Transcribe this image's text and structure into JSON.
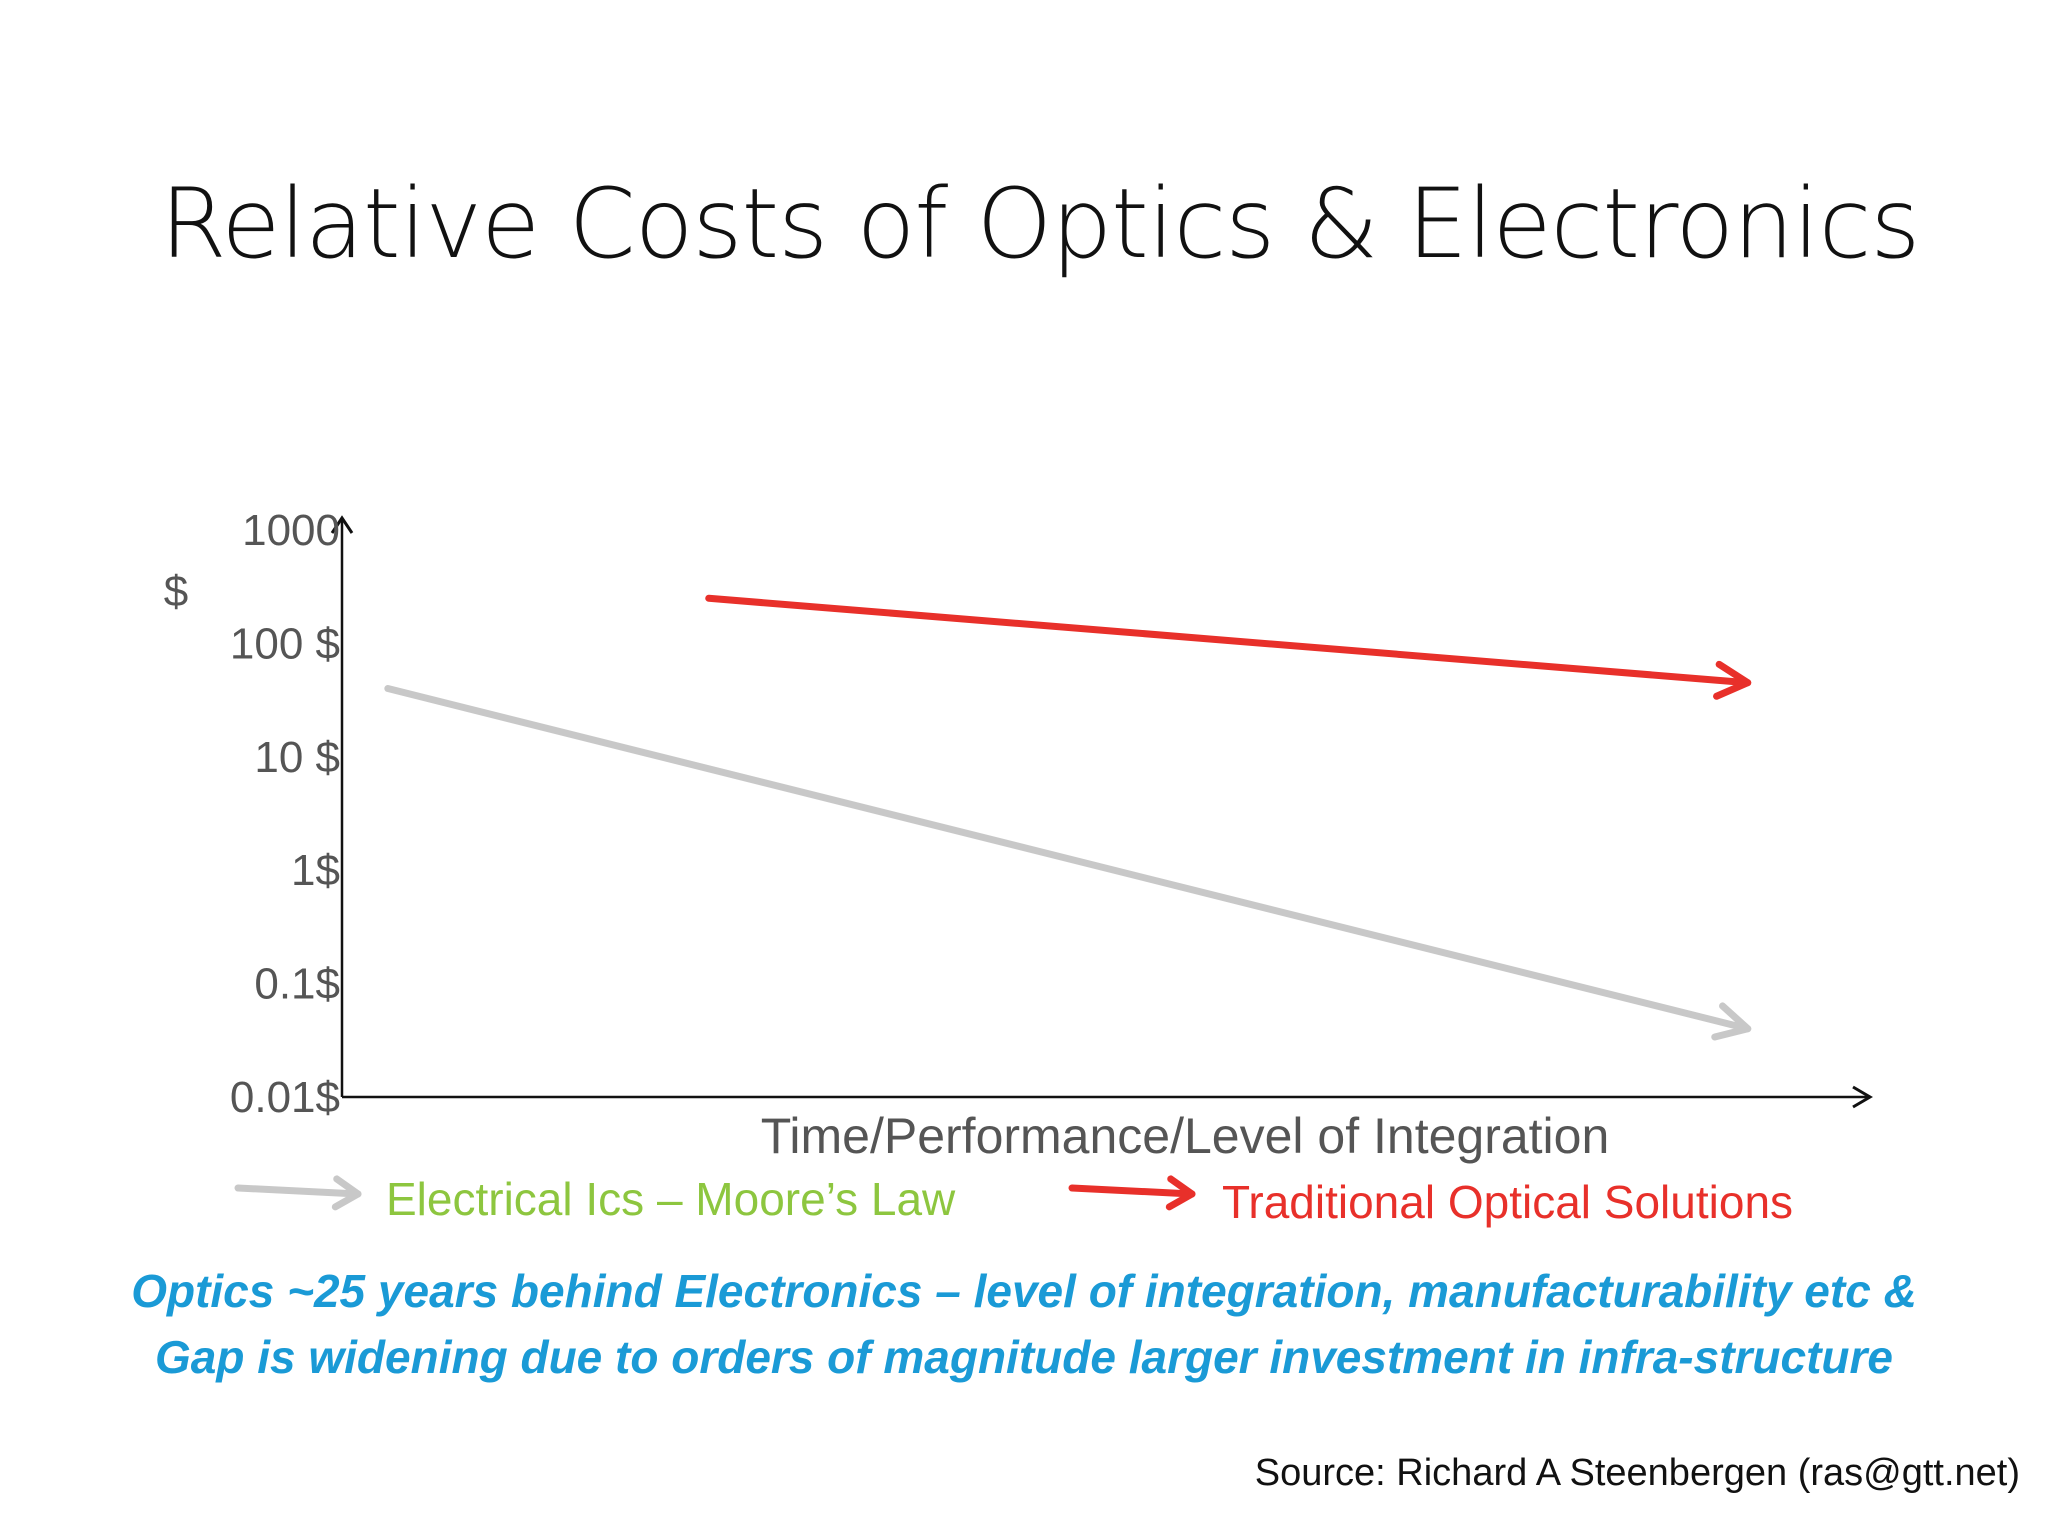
{
  "slide": {
    "title": "Relative Costs of Optics & Electronics",
    "note_lines": [
      "Optics ~25 years behind Electronics – level of integration, manufacturability etc &",
      "Gap is widening due to orders of magnitude larger investment in infra-structure"
    ],
    "source": "Source: Richard A Steenbergen (ras@gtt.net)"
  },
  "chart_data": {
    "type": "line",
    "title": "",
    "xlabel": "Time/Performance/Level of Integration",
    "ylabel": "$",
    "y_scale": "log",
    "y_ticks": [
      {
        "value": 1000,
        "label": "1000"
      },
      {
        "value": 100,
        "label": "100 $"
      },
      {
        "value": 10,
        "label": "10 $"
      },
      {
        "value": 1,
        "label": "1$"
      },
      {
        "value": 0.1,
        "label": "0.1$"
      },
      {
        "value": 0.01,
        "label": "0.01$"
      }
    ],
    "ylim": [
      0.01,
      1000
    ],
    "xlim": [
      0,
      1
    ],
    "grid": false,
    "legend_position": "bottom",
    "series": [
      {
        "name": "Electrical Ics – Moore’s Law",
        "color": "#c8c8c8",
        "legend_color": "#8dc63f",
        "x": [
          0.03,
          0.92
        ],
        "y": [
          40,
          0.04
        ]
      },
      {
        "name": "Traditional Optical Solutions",
        "color": "#e8302a",
        "legend_color": "#e8302a",
        "x": [
          0.24,
          0.92
        ],
        "y": [
          250,
          45
        ]
      }
    ]
  }
}
